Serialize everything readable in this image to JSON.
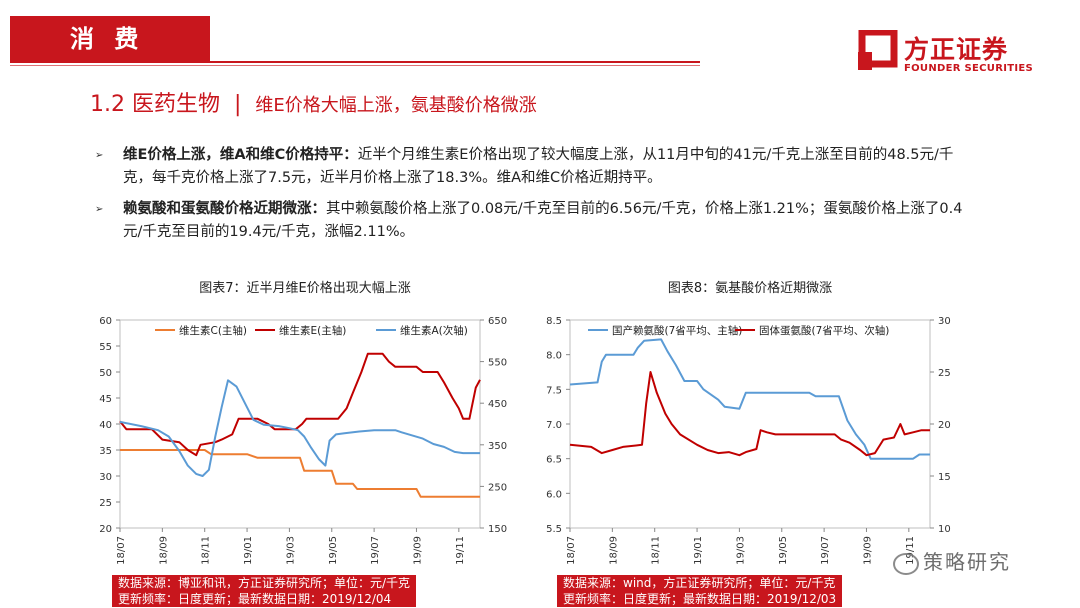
{
  "header": {
    "section_label": "消 费",
    "headline_prefix": "1.2 医药生物",
    "headline_sep": "|",
    "headline_sub": "维E价格大幅上涨，氨基酸价格微涨"
  },
  "logo": {
    "cn": "方正证券",
    "en": "FOUNDER SECURITIES"
  },
  "bullets": [
    {
      "bold": "维E价格上涨，维A和维C价格持平：",
      "text": "近半个月维生素E价格出现了较大幅度上涨，从11月中旬的41元/千克上涨至目前的48.5元/千克，每千克价格上涨了7.5元，近半月价格上涨了18.3%。维A和维C价格近期持平。"
    },
    {
      "bold": "赖氨酸和蛋氨酸价格近期微涨：",
      "text": "其中赖氨酸价格上涨了0.08元/千克至目前的6.56元/千克，价格上涨1.21%；蛋氨酸价格上涨了0.4元/千克至目前的19.4元/千克，涨幅2.11%。"
    }
  ],
  "colors": {
    "brand": "#c8161d",
    "vitC": "#ed7d31",
    "vitE": "#c00000",
    "vitA": "#5b9bd5",
    "lys": "#5b9bd5",
    "met": "#c00000"
  },
  "chart_data": [
    {
      "type": "line",
      "title": "图表7：近半月维E价格出现大幅上涨",
      "x_ticks": [
        "18/07",
        "18/09",
        "18/11",
        "19/01",
        "19/03",
        "19/05",
        "19/07",
        "19/09",
        "19/11"
      ],
      "x_range": [
        0,
        17
      ],
      "y_left": {
        "range": [
          20,
          60
        ],
        "ticks": [
          20,
          25,
          30,
          35,
          40,
          45,
          50,
          55,
          60
        ]
      },
      "y_right": {
        "range": [
          150,
          650
        ],
        "ticks": [
          150,
          250,
          350,
          450,
          550,
          650
        ]
      },
      "legend_position": "top",
      "series": [
        {
          "name": "维生素C(主轴)",
          "axis": "left",
          "color": "#ed7d31",
          "points": [
            [
              0,
              35
            ],
            [
              4,
              35
            ],
            [
              4.3,
              34.2
            ],
            [
              6,
              34.2
            ],
            [
              6.5,
              33.5
            ],
            [
              8.5,
              33.5
            ],
            [
              8.7,
              31
            ],
            [
              10,
              31
            ],
            [
              10.2,
              28.5
            ],
            [
              11,
              28.5
            ],
            [
              11.2,
              27.5
            ],
            [
              14,
              27.5
            ],
            [
              14.2,
              26
            ],
            [
              17,
              26
            ]
          ]
        },
        {
          "name": "维生素E(主轴)",
          "axis": "left",
          "color": "#c00000",
          "points": [
            [
              0,
              40.5
            ],
            [
              0.3,
              39
            ],
            [
              1.5,
              39
            ],
            [
              2,
              37
            ],
            [
              2.8,
              36.5
            ],
            [
              3.2,
              35
            ],
            [
              3.6,
              34
            ],
            [
              3.8,
              36
            ],
            [
              4.5,
              36.5
            ],
            [
              4.8,
              37
            ],
            [
              5.3,
              38
            ],
            [
              5.6,
              41
            ],
            [
              6.5,
              41
            ],
            [
              7,
              40
            ],
            [
              7.3,
              39
            ],
            [
              8.3,
              39
            ],
            [
              8.6,
              40
            ],
            [
              8.8,
              41
            ],
            [
              9.5,
              41
            ],
            [
              10.3,
              41
            ],
            [
              10.7,
              43
            ],
            [
              11,
              46
            ],
            [
              11.4,
              50
            ],
            [
              11.7,
              53.5
            ],
            [
              12.4,
              53.5
            ],
            [
              12.7,
              52
            ],
            [
              13,
              51
            ],
            [
              14,
              51
            ],
            [
              14.3,
              50
            ],
            [
              15,
              50
            ],
            [
              15.3,
              48
            ],
            [
              15.7,
              45
            ],
            [
              16,
              43
            ],
            [
              16.2,
              41
            ],
            [
              16.5,
              41
            ],
            [
              16.6,
              43
            ],
            [
              16.8,
              47
            ],
            [
              17,
              48.5
            ]
          ]
        },
        {
          "name": "维生素A(次轴)",
          "axis": "right",
          "color": "#5b9bd5",
          "points": [
            [
              0,
              405
            ],
            [
              1,
              395
            ],
            [
              1.8,
              385
            ],
            [
              2.3,
              370
            ],
            [
              2.8,
              335
            ],
            [
              3.2,
              300
            ],
            [
              3.6,
              280
            ],
            [
              3.9,
              275
            ],
            [
              4.2,
              290
            ],
            [
              4.5,
              370
            ],
            [
              4.8,
              440
            ],
            [
              5.1,
              505
            ],
            [
              5.5,
              490
            ],
            [
              6,
              440
            ],
            [
              6.3,
              410
            ],
            [
              6.8,
              398
            ],
            [
              7.5,
              395
            ],
            [
              8,
              390
            ],
            [
              8.4,
              385
            ],
            [
              8.7,
              370
            ],
            [
              9,
              345
            ],
            [
              9.4,
              315
            ],
            [
              9.7,
              300
            ],
            [
              9.9,
              360
            ],
            [
              10.2,
              375
            ],
            [
              10.6,
              378
            ],
            [
              11.3,
              382
            ],
            [
              12,
              385
            ],
            [
              13,
              385
            ],
            [
              13.3,
              380
            ],
            [
              14.3,
              365
            ],
            [
              14.8,
              352
            ],
            [
              15.3,
              345
            ],
            [
              15.8,
              333
            ],
            [
              16.2,
              330
            ],
            [
              17,
              330
            ]
          ]
        }
      ]
    },
    {
      "type": "line",
      "title": "图表8：氨基酸价格近期微涨",
      "x_ticks": [
        "18/07",
        "18/09",
        "18/11",
        "19/01",
        "19/03",
        "19/05",
        "19/07",
        "19/09",
        "19/11"
      ],
      "x_range": [
        0,
        17
      ],
      "y_left": {
        "range": [
          5.5,
          8.5
        ],
        "ticks": [
          5.5,
          6.0,
          6.5,
          7.0,
          7.5,
          8.0,
          8.5
        ]
      },
      "y_right": {
        "range": [
          10,
          30
        ],
        "ticks": [
          10,
          15,
          20,
          25,
          30
        ]
      },
      "legend_position": "top",
      "series": [
        {
          "name": "国产赖氨酸(7省平均、主轴)",
          "axis": "left",
          "color": "#5b9bd5",
          "points": [
            [
              0,
              7.57
            ],
            [
              1.3,
              7.6
            ],
            [
              1.5,
              7.9
            ],
            [
              1.7,
              8.0
            ],
            [
              3,
              8.0
            ],
            [
              3.2,
              8.1
            ],
            [
              3.5,
              8.2
            ],
            [
              4.3,
              8.22
            ],
            [
              4.6,
              8.05
            ],
            [
              5,
              7.85
            ],
            [
              5.4,
              7.62
            ],
            [
              6,
              7.62
            ],
            [
              6.3,
              7.5
            ],
            [
              7,
              7.35
            ],
            [
              7.3,
              7.25
            ],
            [
              8,
              7.22
            ],
            [
              8.3,
              7.45
            ],
            [
              9.3,
              7.45
            ],
            [
              11.3,
              7.45
            ],
            [
              11.6,
              7.4
            ],
            [
              12.7,
              7.4
            ],
            [
              13.1,
              7.05
            ],
            [
              13.5,
              6.85
            ],
            [
              13.9,
              6.7
            ],
            [
              14.2,
              6.5
            ],
            [
              16.2,
              6.5
            ],
            [
              16.5,
              6.56
            ],
            [
              17,
              6.56
            ]
          ]
        },
        {
          "name": "固体蛋氨酸(7省平均、次轴)",
          "axis": "right",
          "color": "#c00000",
          "points": [
            [
              0,
              18
            ],
            [
              1,
              17.8
            ],
            [
              1.5,
              17.2
            ],
            [
              2,
              17.5
            ],
            [
              2.5,
              17.8
            ],
            [
              3.4,
              18
            ],
            [
              3.6,
              22
            ],
            [
              3.8,
              25
            ],
            [
              4.1,
              23
            ],
            [
              4.5,
              21
            ],
            [
              4.8,
              20
            ],
            [
              5.2,
              19
            ],
            [
              6,
              18
            ],
            [
              6.5,
              17.5
            ],
            [
              7,
              17.2
            ],
            [
              7.5,
              17.3
            ],
            [
              8,
              17
            ],
            [
              8.3,
              17.3
            ],
            [
              8.8,
              17.6
            ],
            [
              9,
              19.4
            ],
            [
              9.3,
              19.2
            ],
            [
              9.7,
              19
            ],
            [
              11,
              19
            ],
            [
              12.5,
              19
            ],
            [
              12.8,
              18.5
            ],
            [
              13.2,
              18.2
            ],
            [
              13.7,
              17.5
            ],
            [
              14,
              17
            ],
            [
              14.4,
              17.2
            ],
            [
              14.8,
              18.5
            ],
            [
              15.3,
              18.7
            ],
            [
              15.6,
              20
            ],
            [
              15.8,
              19
            ],
            [
              16.2,
              19.2
            ],
            [
              16.6,
              19.4
            ],
            [
              17,
              19.4
            ]
          ]
        }
      ]
    }
  ],
  "footers": [
    {
      "source": "数据来源：博亚和讯，方正证券研究所；单位：元/千克",
      "freq": "更新频率：日度更新；最新数据日期：2019/12/04"
    },
    {
      "source": "数据来源：wind，方正证券研究所；单位：元/千克",
      "freq": "更新频率：日度更新；最新数据日期：2019/12/03"
    }
  ],
  "watermark": "策略研究"
}
